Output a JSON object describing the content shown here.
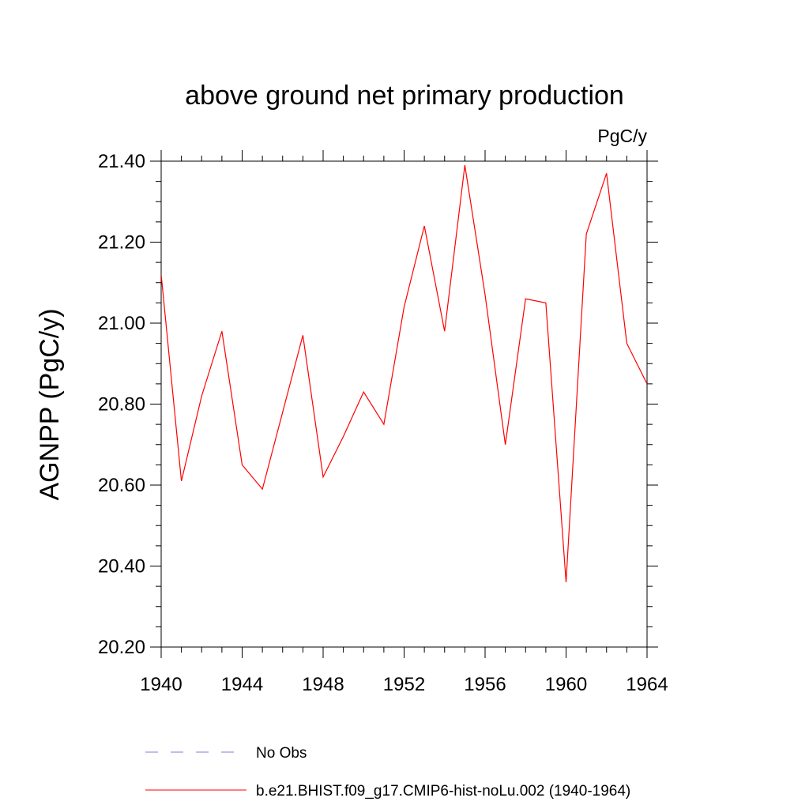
{
  "chart_data": {
    "type": "line",
    "title": "above ground net primary production",
    "units_label": "PgC/y",
    "xlabel": "",
    "ylabel": "AGNPP  (PgC/y)",
    "xlim": [
      1940,
      1964
    ],
    "ylim": [
      20.2,
      21.4
    ],
    "x_ticks": [
      1940,
      1944,
      1948,
      1952,
      1956,
      1960,
      1964
    ],
    "x_tick_labels": [
      "1940",
      "1944",
      "1948",
      "1952",
      "1956",
      "1960",
      "1964"
    ],
    "y_ticks": [
      20.2,
      20.4,
      20.6,
      20.8,
      21.0,
      21.2,
      21.4
    ],
    "y_tick_labels": [
      "20.20",
      "20.40",
      "20.60",
      "20.80",
      "21.00",
      "21.20",
      "21.40"
    ],
    "x_minor_step": 1,
    "y_minor_step": 0.05,
    "grid": false,
    "legend_position": "bottom-center",
    "series": [
      {
        "name": "No Obs",
        "color": "#7f7fd8",
        "dash": "dashed",
        "x": [],
        "values": []
      },
      {
        "name": "b.e21.BHIST.f09_g17.CMIP6-hist-noLu.002 (1940-1964)",
        "color": "#ff0000",
        "dash": "solid",
        "x": [
          1940,
          1941,
          1942,
          1943,
          1944,
          1945,
          1946,
          1947,
          1948,
          1949,
          1950,
          1951,
          1952,
          1953,
          1954,
          1955,
          1956,
          1957,
          1958,
          1959,
          1960,
          1961,
          1962,
          1963,
          1964
        ],
        "values": [
          21.12,
          20.61,
          20.82,
          20.98,
          20.65,
          20.59,
          20.78,
          20.97,
          20.62,
          20.72,
          20.83,
          20.75,
          21.04,
          21.24,
          20.98,
          21.39,
          21.07,
          20.7,
          21.06,
          21.05,
          20.36,
          21.22,
          21.37,
          20.95,
          20.85
        ]
      }
    ]
  }
}
